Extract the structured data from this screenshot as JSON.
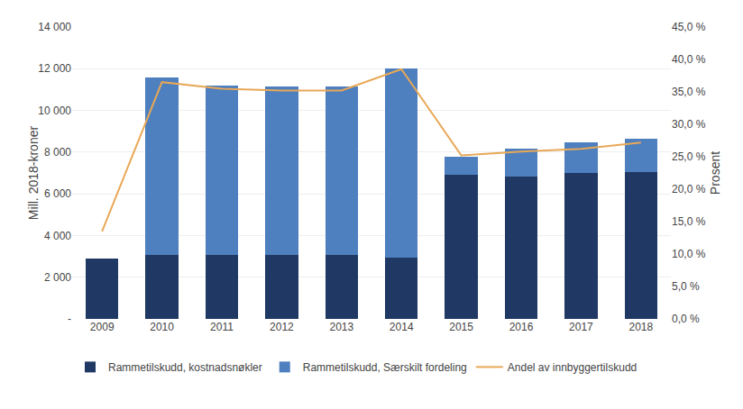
{
  "chart_data": {
    "type": "bar",
    "stacked": true,
    "categories": [
      "2009",
      "2010",
      "2011",
      "2012",
      "2013",
      "2014",
      "2015",
      "2016",
      "2017",
      "2018"
    ],
    "series": [
      {
        "name": "Rammetilskudd, kostnadsnøkler",
        "type": "bar",
        "color": "#1f3864",
        "values": [
          2900,
          3060,
          3080,
          3080,
          3050,
          2960,
          6920,
          6830,
          7010,
          7060
        ]
      },
      {
        "name": "Rammetilskudd, Særskilt fordeling",
        "type": "bar",
        "color": "#4e7fbe",
        "values": [
          0,
          8520,
          8100,
          8080,
          8080,
          9050,
          870,
          1330,
          1480,
          1580
        ]
      },
      {
        "name": "Andel av innbyggertilskudd",
        "type": "line",
        "axis": "y2",
        "color": "#e8a857",
        "values": [
          0.135,
          0.365,
          0.355,
          0.352,
          0.352,
          0.385,
          0.252,
          0.258,
          0.262,
          0.272
        ]
      }
    ],
    "ylabel": "Mill. 2018-kroner",
    "y2label": "Prosent",
    "ylim": [
      0,
      14000
    ],
    "yticks": [
      {
        "value": 0,
        "label": "-"
      },
      {
        "value": 2000,
        "label": "2 000"
      },
      {
        "value": 4000,
        "label": "4 000"
      },
      {
        "value": 6000,
        "label": "6 000"
      },
      {
        "value": 8000,
        "label": "8 000"
      },
      {
        "value": 10000,
        "label": "10 000"
      },
      {
        "value": 12000,
        "label": "12 000"
      },
      {
        "value": 14000,
        "label": "14 000"
      }
    ],
    "y2lim": [
      0,
      0.45
    ],
    "y2ticks": [
      {
        "value": 0.0,
        "label": "0,0 %"
      },
      {
        "value": 0.05,
        "label": "5,0 %"
      },
      {
        "value": 0.1,
        "label": "10,0 %"
      },
      {
        "value": 0.15,
        "label": "15,0 %"
      },
      {
        "value": 0.2,
        "label": "20,0 %"
      },
      {
        "value": 0.25,
        "label": "25,0 %"
      },
      {
        "value": 0.3,
        "label": "30,0 %"
      },
      {
        "value": 0.35,
        "label": "35,0 %"
      },
      {
        "value": 0.4,
        "label": "40,0 %"
      },
      {
        "value": 0.45,
        "label": "45,0 %"
      }
    ],
    "grid": true,
    "legend": "bottom"
  }
}
